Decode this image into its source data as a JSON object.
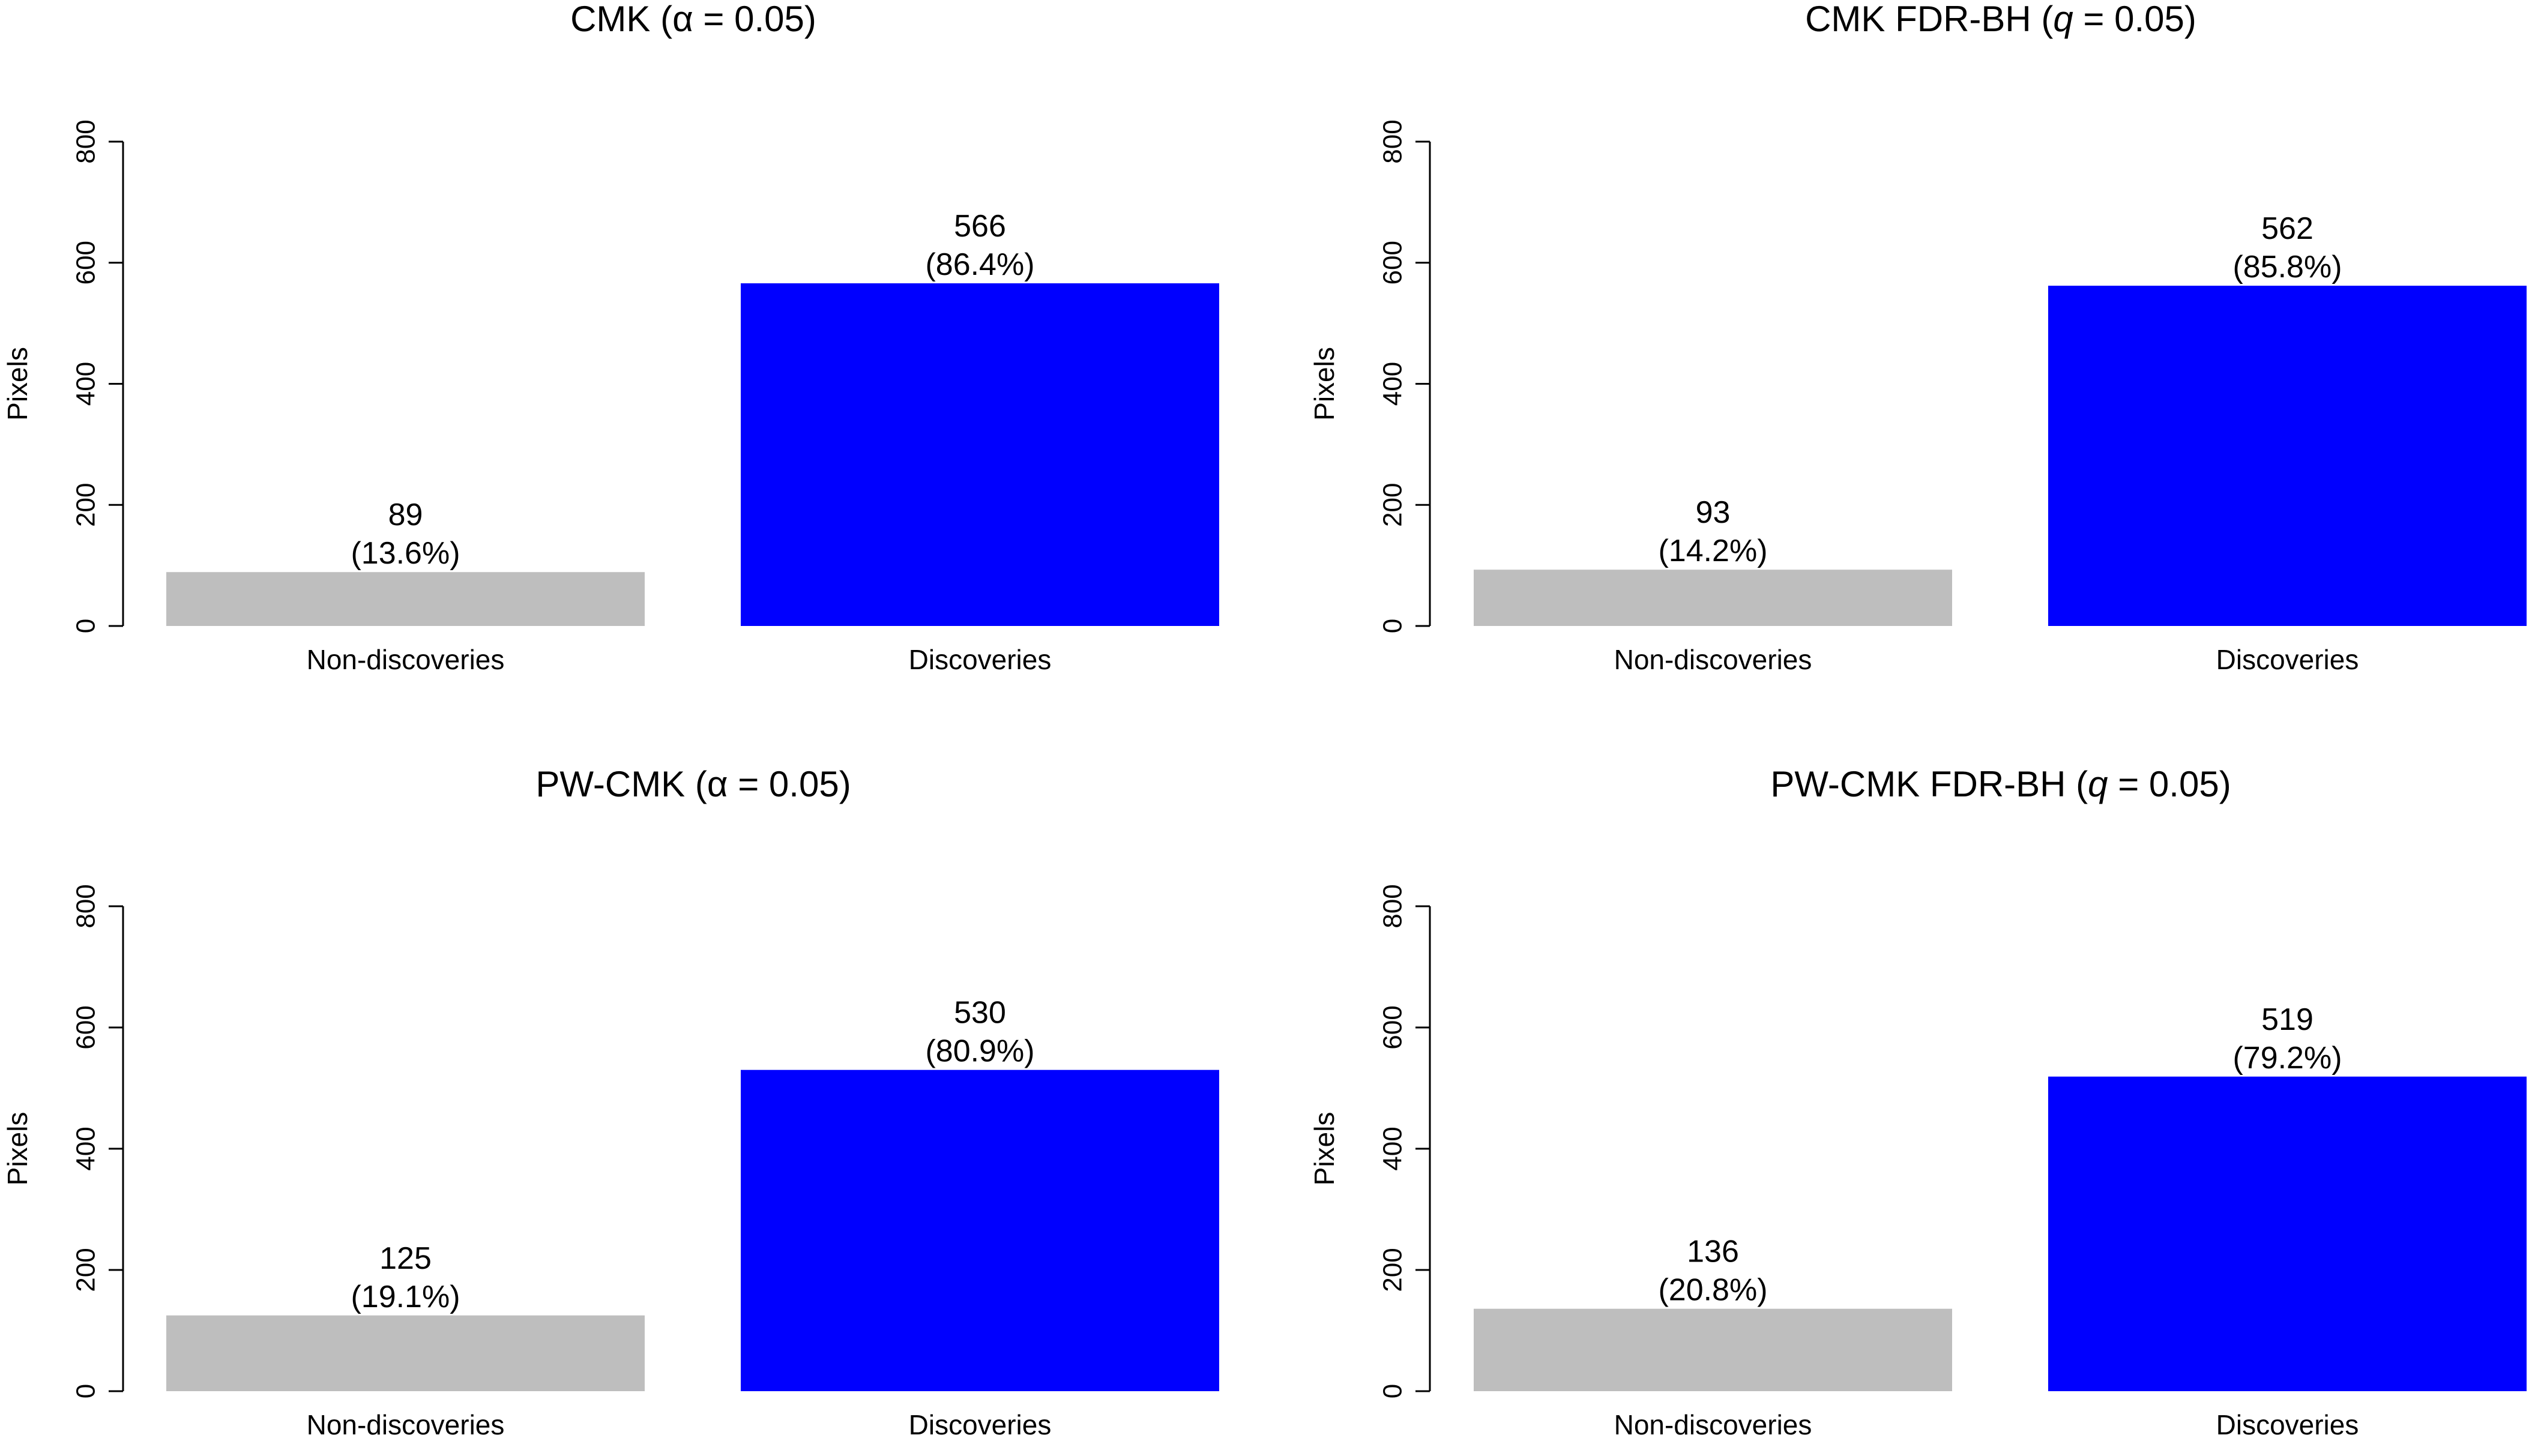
{
  "chart_data": [
    {
      "type": "bar",
      "title": {
        "prefix": "CMK (",
        "symbol": "α",
        "symbol_italic": false,
        "suffix": " = 0.05)"
      },
      "ylabel": "Pixels",
      "ylim": [
        0,
        800
      ],
      "yticks": [
        0,
        200,
        400,
        600,
        800
      ],
      "categories": [
        "Non-discoveries",
        "Discoveries"
      ],
      "values": [
        89,
        566
      ],
      "value_labels": [
        "89",
        "566"
      ],
      "percent_labels": [
        "(13.6%)",
        "(86.4%)"
      ],
      "colors": [
        "#bebebe",
        "#0000ff"
      ]
    },
    {
      "type": "bar",
      "title": {
        "prefix": "CMK FDR-BH (",
        "symbol": "q",
        "symbol_italic": true,
        "suffix": " = 0.05)"
      },
      "ylabel": "Pixels",
      "ylim": [
        0,
        800
      ],
      "yticks": [
        0,
        200,
        400,
        600,
        800
      ],
      "categories": [
        "Non-discoveries",
        "Discoveries"
      ],
      "values": [
        93,
        562
      ],
      "value_labels": [
        "93",
        "562"
      ],
      "percent_labels": [
        "(14.2%)",
        "(85.8%)"
      ],
      "colors": [
        "#bebebe",
        "#0000ff"
      ]
    },
    {
      "type": "bar",
      "title": {
        "prefix": "PW-CMK (",
        "symbol": "α",
        "symbol_italic": false,
        "suffix": " = 0.05)"
      },
      "ylabel": "Pixels",
      "ylim": [
        0,
        800
      ],
      "yticks": [
        0,
        200,
        400,
        600,
        800
      ],
      "categories": [
        "Non-discoveries",
        "Discoveries"
      ],
      "values": [
        125,
        530
      ],
      "value_labels": [
        "125",
        "530"
      ],
      "percent_labels": [
        "(19.1%)",
        "(80.9%)"
      ],
      "colors": [
        "#bebebe",
        "#0000ff"
      ]
    },
    {
      "type": "bar",
      "title": {
        "prefix": "PW-CMK FDR-BH (",
        "symbol": "q",
        "symbol_italic": true,
        "suffix": " = 0.05)"
      },
      "ylabel": "Pixels",
      "ylim": [
        0,
        800
      ],
      "yticks": [
        0,
        200,
        400,
        600,
        800
      ],
      "categories": [
        "Non-discoveries",
        "Discoveries"
      ],
      "values": [
        136,
        519
      ],
      "value_labels": [
        "136",
        "519"
      ],
      "percent_labels": [
        "(20.8%)",
        "(79.2%)"
      ],
      "colors": [
        "#bebebe",
        "#0000ff"
      ]
    }
  ]
}
